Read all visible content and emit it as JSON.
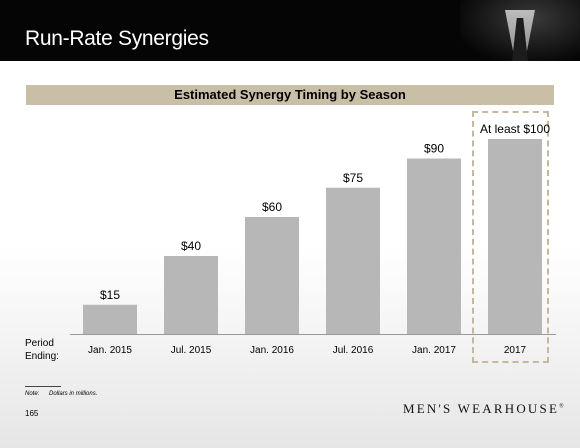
{
  "header": {
    "title": "Run-Rate Synergies"
  },
  "banner": {
    "text": "Estimated Synergy Timing by Season"
  },
  "axis": {
    "period_label_line1": "Period",
    "period_label_line2": "Ending:"
  },
  "chart_data": {
    "type": "bar",
    "title": "Estimated Synergy Timing by Season",
    "categories": [
      "Jan. 2015",
      "Jul. 2015",
      "Jan. 2016",
      "Jul. 2016",
      "Jan. 2017",
      "2017"
    ],
    "values": [
      15,
      40,
      60,
      75,
      90,
      100
    ],
    "data_labels": [
      "$15",
      "$40",
      "$60",
      "$75",
      "$90",
      "At least $100"
    ],
    "ylim": [
      0,
      100
    ],
    "grid": false,
    "bar_color": "#b7b7b7",
    "highlight_category": "2017",
    "highlight_border_color": "#c8b89a"
  },
  "footer": {
    "note_label": "Note:",
    "note_text": "Dollars in millions.",
    "page_number": "165"
  },
  "logo": {
    "text": "MEN'S WEARHOUSE",
    "mark": "®"
  }
}
